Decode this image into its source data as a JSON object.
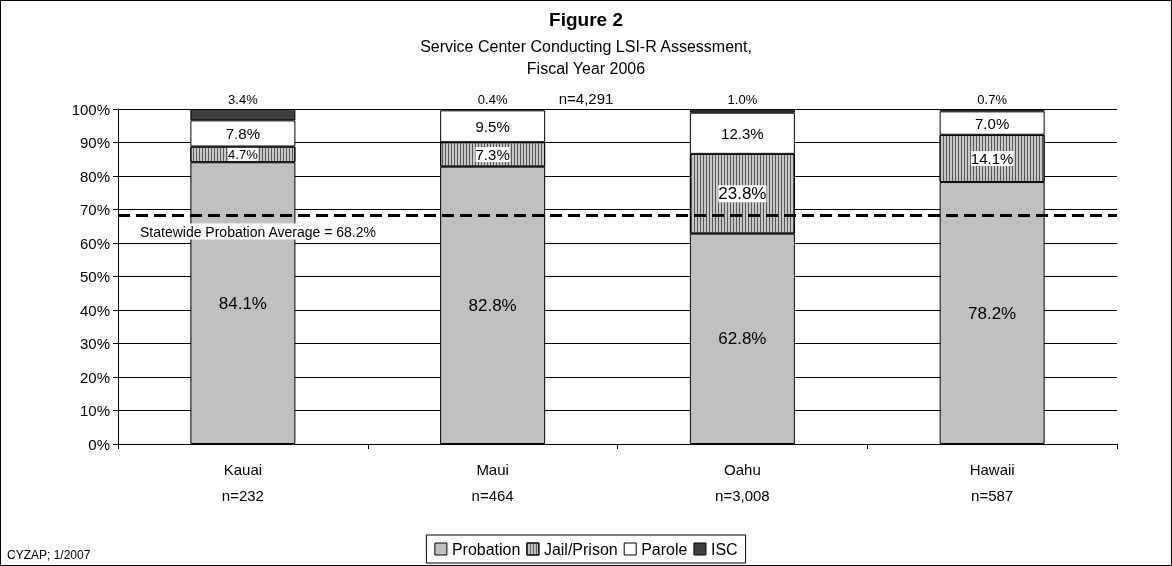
{
  "chart_data": {
    "type": "bar",
    "stacked": true,
    "title": "Figure 2",
    "subtitle": "Service Center Conducting LSI-R Assessment,\nFiscal Year 2006",
    "annotations": [
      "n=4,291",
      "CYZAP; 1/2007"
    ],
    "categories": [
      "Kauai\nn=232",
      "Maui\nn=464",
      "Oahu\nn=3,008",
      "Hawaii\nn=587"
    ],
    "series": [
      {
        "name": "Probation",
        "color": "#c0c0c0",
        "values": [
          84.1,
          82.8,
          62.8,
          78.2
        ],
        "value_labels": [
          "84.1%",
          "82.8%",
          "62.8%",
          "78.2%"
        ]
      },
      {
        "name": "Jail/Prison",
        "color": "#c8c8c8",
        "values": [
          4.7,
          7.3,
          23.8,
          14.1
        ],
        "value_labels": [
          "4.7%",
          "7.3%",
          "23.8%",
          "14.1%"
        ]
      },
      {
        "name": "Parole",
        "color": "#ffffff",
        "values": [
          7.8,
          9.5,
          12.3,
          7.0
        ],
        "value_labels": [
          "7.8%",
          "9.5%",
          "12.3%",
          "7.0%"
        ]
      },
      {
        "name": "ISC",
        "color": "#404040",
        "values": [
          3.4,
          0.4,
          1.0,
          0.7
        ],
        "value_labels": [
          "3.4%",
          "0.4%",
          "1.0%",
          "0.7%"
        ]
      }
    ],
    "ylim": [
      0,
      100
    ],
    "yticks": [
      {
        "value": 0,
        "label": "0%"
      },
      {
        "value": 10,
        "label": "10%"
      },
      {
        "value": 20,
        "label": "20%"
      },
      {
        "value": 30,
        "label": "30%"
      },
      {
        "value": 40,
        "label": "40%"
      },
      {
        "value": 50,
        "label": "50%"
      },
      {
        "value": 60,
        "label": "60%"
      },
      {
        "value": 70,
        "label": "70%"
      },
      {
        "value": 80,
        "label": "80%"
      },
      {
        "value": 90,
        "label": "90%"
      },
      {
        "value": 100,
        "label": "100%"
      }
    ],
    "ref_lines": [
      {
        "axis": "y",
        "value": 68.2,
        "label": "Statewide Probation Average = 68.2%",
        "color": "#000000",
        "line_style": "dashed"
      }
    ],
    "grid": "y",
    "legend": "bottom"
  }
}
